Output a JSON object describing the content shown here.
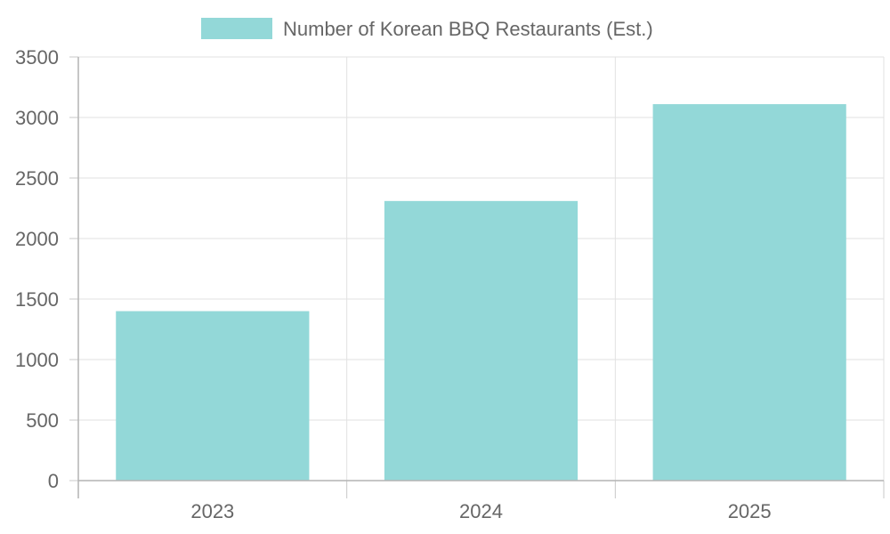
{
  "chart_data": {
    "type": "bar",
    "categories": [
      "2023",
      "2024",
      "2025"
    ],
    "series": [
      {
        "name": "Number of Korean BBQ Restaurants (Est.)",
        "values": [
          1400,
          2310,
          3110
        ],
        "color": "#93d8d8"
      }
    ],
    "ylim": [
      0,
      3500
    ],
    "yticks": [
      0,
      500,
      1000,
      1500,
      2000,
      2500,
      3000,
      3500
    ],
    "grid": true,
    "legend": "top-center"
  }
}
